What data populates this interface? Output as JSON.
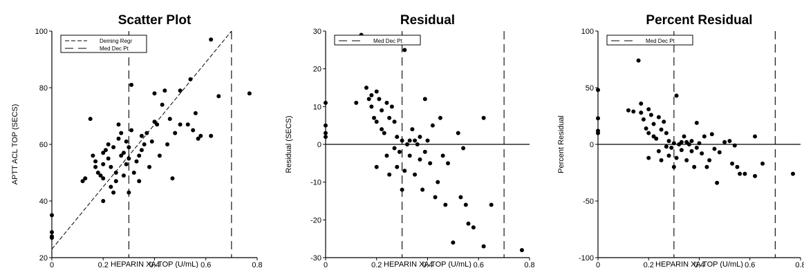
{
  "chart_data": [
    {
      "type": "scatter",
      "title": "Scatter Plot",
      "xlabel": "HEPARIN XA TOP (U/mL)",
      "ylabel": "APTT ACL TOP (SECS)",
      "xlim": [
        0,
        0.8
      ],
      "ylim": [
        20,
        100
      ],
      "xticks": [
        "0",
        "0.2",
        "0.4",
        "0.6",
        "0.8"
      ],
      "yticks": [
        "20",
        "40",
        "60",
        "80",
        "100"
      ],
      "legend": [
        "Deming Regr",
        "Med Dec Pt"
      ],
      "legend_position": "top-left",
      "decision_points_x": [
        0.3,
        0.7
      ],
      "regression_line": [
        [
          0.0,
          23
        ],
        [
          0.7,
          100
        ]
      ],
      "points": [
        [
          0.0,
          35
        ],
        [
          0.0,
          29
        ],
        [
          0.0,
          27
        ],
        [
          0.0,
          27.5
        ],
        [
          0.12,
          47
        ],
        [
          0.13,
          48
        ],
        [
          0.15,
          69
        ],
        [
          0.16,
          56
        ],
        [
          0.17,
          52
        ],
        [
          0.17,
          54
        ],
        [
          0.18,
          50
        ],
        [
          0.19,
          49
        ],
        [
          0.2,
          48
        ],
        [
          0.2,
          57
        ],
        [
          0.2,
          53
        ],
        [
          0.2,
          40
        ],
        [
          0.21,
          58
        ],
        [
          0.22,
          60
        ],
        [
          0.22,
          55
        ],
        [
          0.23,
          45
        ],
        [
          0.23,
          52
        ],
        [
          0.24,
          59
        ],
        [
          0.24,
          43
        ],
        [
          0.25,
          50
        ],
        [
          0.25,
          47
        ],
        [
          0.26,
          62
        ],
        [
          0.27,
          64
        ],
        [
          0.27,
          56
        ],
        [
          0.28,
          57
        ],
        [
          0.28,
          49
        ],
        [
          0.29,
          61
        ],
        [
          0.29,
          53
        ],
        [
          0.3,
          59
        ],
        [
          0.3,
          43
        ],
        [
          0.3,
          55
        ],
        [
          0.31,
          81
        ],
        [
          0.31,
          65
        ],
        [
          0.32,
          50
        ],
        [
          0.33,
          54
        ],
        [
          0.34,
          47
        ],
        [
          0.35,
          63
        ],
        [
          0.35,
          58
        ],
        [
          0.36,
          60
        ],
        [
          0.37,
          64
        ],
        [
          0.38,
          52
        ],
        [
          0.39,
          61
        ],
        [
          0.4,
          68
        ],
        [
          0.4,
          78
        ],
        [
          0.41,
          67
        ],
        [
          0.42,
          56
        ],
        [
          0.43,
          74
        ],
        [
          0.44,
          79
        ],
        [
          0.45,
          60
        ],
        [
          0.46,
          69
        ],
        [
          0.47,
          48
        ],
        [
          0.48,
          64
        ],
        [
          0.5,
          67
        ],
        [
          0.5,
          79
        ],
        [
          0.53,
          67
        ],
        [
          0.54,
          83
        ],
        [
          0.55,
          65
        ],
        [
          0.56,
          71
        ],
        [
          0.57,
          62
        ],
        [
          0.58,
          63
        ],
        [
          0.62,
          63
        ],
        [
          0.62,
          97
        ],
        [
          0.65,
          77
        ],
        [
          0.77,
          78
        ],
        [
          0.26,
          67
        ],
        [
          0.34,
          56
        ]
      ]
    },
    {
      "type": "scatter",
      "title": "Residual",
      "xlabel": "HEPARIN XA TOP (U/mL)",
      "ylabel": "Residual (SECS)",
      "xlim": [
        0,
        0.8
      ],
      "ylim": [
        -30,
        30
      ],
      "xticks": [
        "0",
        "0.2",
        "0.4",
        "0.6",
        "0.8"
      ],
      "yticks": [
        "-30",
        "-20",
        "-10",
        "0",
        "10",
        "20",
        "30"
      ],
      "legend": [
        "Med Dec Pt"
      ],
      "legend_position": "top-left",
      "decision_points_x": [
        0.3,
        0.7
      ],
      "zero_line": 0,
      "points": [
        [
          0.0,
          11
        ],
        [
          0.0,
          5
        ],
        [
          0.0,
          3
        ],
        [
          0.0,
          2
        ],
        [
          0.12,
          11
        ],
        [
          0.14,
          29
        ],
        [
          0.16,
          15
        ],
        [
          0.17,
          12
        ],
        [
          0.18,
          13
        ],
        [
          0.18,
          10
        ],
        [
          0.19,
          7
        ],
        [
          0.2,
          14
        ],
        [
          0.2,
          6
        ],
        [
          0.2,
          -6
        ],
        [
          0.21,
          12
        ],
        [
          0.22,
          9
        ],
        [
          0.22,
          4
        ],
        [
          0.23,
          3
        ],
        [
          0.24,
          11
        ],
        [
          0.24,
          -3
        ],
        [
          0.25,
          7
        ],
        [
          0.25,
          -8
        ],
        [
          0.26,
          10
        ],
        [
          0.27,
          6
        ],
        [
          0.27,
          -1
        ],
        [
          0.28,
          2
        ],
        [
          0.29,
          -2
        ],
        [
          0.3,
          1
        ],
        [
          0.3,
          -12
        ],
        [
          0.31,
          25
        ],
        [
          0.31,
          -7
        ],
        [
          0.32,
          0
        ],
        [
          0.33,
          -3
        ],
        [
          0.34,
          4
        ],
        [
          0.35,
          1
        ],
        [
          0.35,
          -8
        ],
        [
          0.36,
          0
        ],
        [
          0.37,
          -4
        ],
        [
          0.38,
          -12
        ],
        [
          0.39,
          12
        ],
        [
          0.39,
          -2
        ],
        [
          0.4,
          1
        ],
        [
          0.41,
          -5
        ],
        [
          0.42,
          5
        ],
        [
          0.43,
          -14
        ],
        [
          0.44,
          -10
        ],
        [
          0.45,
          7
        ],
        [
          0.46,
          -3
        ],
        [
          0.47,
          -16
        ],
        [
          0.48,
          -5
        ],
        [
          0.5,
          -26
        ],
        [
          0.52,
          3
        ],
        [
          0.53,
          -14
        ],
        [
          0.54,
          -1
        ],
        [
          0.55,
          -16
        ],
        [
          0.56,
          -21
        ],
        [
          0.58,
          -22
        ],
        [
          0.62,
          7
        ],
        [
          0.62,
          -27
        ],
        [
          0.65,
          -16
        ],
        [
          0.77,
          -28
        ],
        [
          0.33,
          1
        ],
        [
          0.28,
          -6
        ],
        [
          0.37,
          2
        ]
      ]
    },
    {
      "type": "scatter",
      "title": "Percent Residual",
      "xlabel": "HEPARIN XA TOP (U/mL)",
      "ylabel": "Percent Residual",
      "xlim": [
        0,
        0.8
      ],
      "ylim": [
        -100,
        100
      ],
      "xticks": [
        "0",
        "0.2",
        "0.4",
        "0.6",
        "0.8"
      ],
      "yticks": [
        "-100",
        "-50",
        "0",
        "50",
        "100"
      ],
      "legend": [
        "Med Dec Pt"
      ],
      "legend_position": "top-left",
      "decision_points_x": [
        0.3,
        0.7
      ],
      "zero_line": 0,
      "points": [
        [
          0.0,
          48
        ],
        [
          0.0,
          23
        ],
        [
          0.0,
          12
        ],
        [
          0.0,
          10
        ],
        [
          0.12,
          30
        ],
        [
          0.14,
          29
        ],
        [
          0.16,
          74
        ],
        [
          0.17,
          36
        ],
        [
          0.17,
          28
        ],
        [
          0.18,
          22
        ],
        [
          0.19,
          14
        ],
        [
          0.2,
          31
        ],
        [
          0.2,
          10
        ],
        [
          0.2,
          -12
        ],
        [
          0.21,
          26
        ],
        [
          0.22,
          18
        ],
        [
          0.22,
          7
        ],
        [
          0.23,
          5
        ],
        [
          0.24,
          24
        ],
        [
          0.24,
          -6
        ],
        [
          0.25,
          13
        ],
        [
          0.25,
          -14
        ],
        [
          0.26,
          20
        ],
        [
          0.27,
          10
        ],
        [
          0.27,
          -2
        ],
        [
          0.28,
          3
        ],
        [
          0.29,
          -3
        ],
        [
          0.3,
          1
        ],
        [
          0.3,
          -20
        ],
        [
          0.31,
          43
        ],
        [
          0.31,
          -12
        ],
        [
          0.32,
          0
        ],
        [
          0.33,
          -5
        ],
        [
          0.34,
          7
        ],
        [
          0.35,
          2
        ],
        [
          0.35,
          -14
        ],
        [
          0.36,
          0
        ],
        [
          0.37,
          -6
        ],
        [
          0.38,
          -20
        ],
        [
          0.39,
          19
        ],
        [
          0.39,
          -3
        ],
        [
          0.4,
          1
        ],
        [
          0.41,
          -8
        ],
        [
          0.42,
          7
        ],
        [
          0.43,
          -20
        ],
        [
          0.44,
          -14
        ],
        [
          0.45,
          9
        ],
        [
          0.46,
          -4
        ],
        [
          0.47,
          -34
        ],
        [
          0.48,
          -7
        ],
        [
          0.5,
          2
        ],
        [
          0.52,
          3
        ],
        [
          0.53,
          -17
        ],
        [
          0.54,
          -1
        ],
        [
          0.55,
          -20
        ],
        [
          0.56,
          -26
        ],
        [
          0.58,
          -26
        ],
        [
          0.62,
          7
        ],
        [
          0.62,
          -28
        ],
        [
          0.65,
          -17
        ],
        [
          0.77,
          -26
        ],
        [
          0.33,
          2
        ],
        [
          0.28,
          -10
        ],
        [
          0.37,
          3
        ]
      ]
    }
  ]
}
